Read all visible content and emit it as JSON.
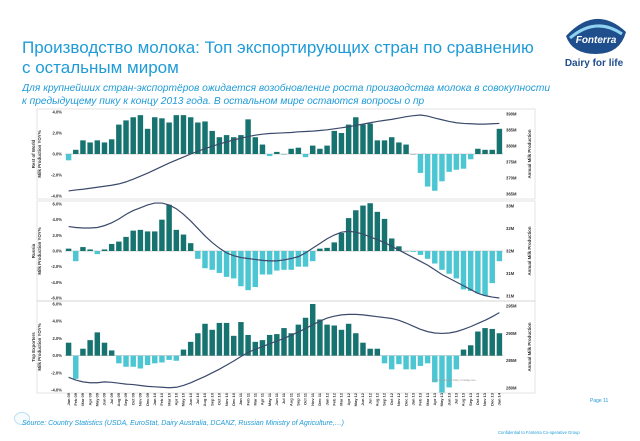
{
  "page": {
    "title": "Производство молока: Топ экспортирующих стран по сравнению с остальным миром",
    "subtitle": "Для крупнейших стран-экспортёров ожидается возобновление роста производства молока в совокупности к предыдущему пику к концу 2013 года. В остальном мире остаются вопросы о пр",
    "logo_text": "Dairy for life",
    "logo_word": "Fonterra",
    "source": "Source: Country Statistics (USDA, EuroStat, Dairy Australia, DCANZ, Russian Ministry of Agriculture,…)",
    "page_number": "Page 11",
    "confidential": "Confidential to Fonterra Co-operative Group",
    "watermark": "Source: Global Dairy Intelligence"
  },
  "colors": {
    "title": "#1f9bd7",
    "positive_bar": "#17736f",
    "negative_bar": "#4cc6d2",
    "line": "#3b4a6b",
    "brand": "#1f4e8c"
  },
  "x_labels": [
    "Jan 09",
    "Feb 09",
    "Mar 09",
    "Apr 09",
    "May 09",
    "Jun 09",
    "Jul 09",
    "Aug 09",
    "Sep 09",
    "Oct 09",
    "Nov 09",
    "Dec 09",
    "Jan 10",
    "Feb 10",
    "Mar 10",
    "Apr 10",
    "May 10",
    "Jun 10",
    "Jul 10",
    "Aug 10",
    "Sep 10",
    "Oct 10",
    "Nov 10",
    "Dec 10",
    "Jan 11",
    "Feb 11",
    "Mar 11",
    "Apr 11",
    "May 11",
    "Jun 11",
    "Jul 11",
    "Aug 11",
    "Sep 11",
    "Oct 11",
    "Nov 11",
    "Dec 11",
    "Jan 12",
    "Feb 12",
    "Mar 12",
    "Apr 12",
    "May 12",
    "Jun 12",
    "Jul 12",
    "Aug 12",
    "Sep 12",
    "Oct 12",
    "Nov 12",
    "Dec 12",
    "Jan 13",
    "Feb 13",
    "Mar 13",
    "Apr 13",
    "May 13",
    "Jun 13",
    "Jul 13",
    "Aug 13",
    "Sep 13",
    "Oct 13",
    "Nov 13",
    "Dec 13",
    "Jan 14"
  ],
  "chart_data": [
    {
      "type": "bar",
      "name": "rest-of-world",
      "ylabel": "Rest of World\nMilk Production YOY%",
      "y2label": "Annual Milk Production",
      "ylim": [
        -4.0,
        4.0
      ],
      "y_ticks": [
        "4.0%",
        "2.0%",
        "0.0%",
        "-2.0%",
        "-4.0%"
      ],
      "y2_ticks": [
        "390M",
        "385M",
        "380M",
        "375M",
        "370M",
        "365M"
      ],
      "y2lim": [
        365,
        390
      ],
      "values": [
        -0.6,
        0.4,
        1.3,
        1.1,
        1.3,
        1.1,
        1.4,
        2.8,
        3.2,
        3.5,
        3.7,
        2.4,
        3.5,
        3.4,
        3.0,
        3.7,
        3.7,
        3.5,
        3.0,
        3.1,
        2.2,
        1.6,
        1.8,
        1.6,
        1.8,
        3.3,
        1.6,
        0.9,
        -0.2,
        0.2,
        0.0,
        0.5,
        0.6,
        -0.3,
        0.8,
        0.5,
        0.8,
        2.2,
        2.0,
        2.8,
        3.5,
        2.8,
        2.9,
        1.3,
        1.3,
        1.6,
        1.1,
        0.9,
        0.0,
        -1.8,
        -3.1,
        -3.5,
        -2.6,
        -1.7,
        -1.5,
        -1.4,
        -0.5,
        0.5,
        0.4,
        0.4,
        2.4
      ],
      "line": [
        366.5,
        366.8,
        367.0,
        367.3,
        367.6,
        367.9,
        368.2,
        368.6,
        369.2,
        370.0,
        370.9,
        371.8,
        372.8,
        373.8,
        374.8,
        375.7,
        376.6,
        377.5,
        378.3,
        379.1,
        379.8,
        380.5,
        381.1,
        381.7,
        382.2,
        382.7,
        383.1,
        383.4,
        383.6,
        383.7,
        383.8,
        383.9,
        384.1,
        384.2,
        384.3,
        384.5,
        384.7,
        385.0,
        385.3,
        385.6,
        386.0,
        386.4,
        386.8,
        387.2,
        387.5,
        387.8,
        388.2,
        388.6,
        388.9,
        389.1,
        388.8,
        388.2,
        387.7,
        387.2,
        386.8,
        386.6,
        386.5,
        386.4,
        386.4,
        386.5,
        386.6
      ]
    },
    {
      "type": "bar",
      "name": "russia",
      "ylabel": "Russia\nMilk Production YOY%",
      "y2label": "Annual Milk Production",
      "ylim": [
        -6.0,
        6.0
      ],
      "y_ticks": [
        "6.0%",
        "4.0%",
        "2.0%",
        "0.0%",
        "-2.0%",
        "-4.0%",
        "-6.0%"
      ],
      "y2_ticks": [
        "33M",
        "32M",
        "32M",
        "31M",
        "31M"
      ],
      "y2lim": [
        31.0,
        33.0
      ],
      "values": [
        0.3,
        -1.3,
        0.5,
        0.2,
        -0.4,
        0.2,
        0.9,
        1.2,
        1.8,
        2.6,
        2.7,
        2.5,
        2.5,
        4.0,
        5.9,
        2.7,
        2.1,
        1.0,
        -1.0,
        -2.2,
        -2.4,
        -2.8,
        -3.3,
        -3.5,
        -4.5,
        -5.0,
        -4.6,
        -3.0,
        -3.0,
        -2.5,
        -2.4,
        -2.4,
        -2.0,
        -2.0,
        -1.3,
        0.3,
        0.4,
        1.1,
        2.3,
        4.2,
        5.2,
        5.8,
        6.1,
        5.0,
        4.1,
        1.6,
        0.6,
        0.0,
        -0.1,
        -0.5,
        -1.0,
        -1.6,
        -2.4,
        -2.9,
        -3.5,
        -4.9,
        -5.1,
        -5.4,
        -5.7,
        -4.1,
        -1.3
      ],
      "line": [
        32.52,
        32.5,
        32.49,
        32.49,
        32.5,
        32.54,
        32.6,
        32.68,
        32.78,
        32.86,
        32.92,
        32.98,
        33.02,
        33.02,
        32.98,
        32.9,
        32.78,
        32.64,
        32.48,
        32.32,
        32.18,
        32.06,
        31.96,
        31.9,
        31.86,
        31.84,
        31.82,
        31.8,
        31.79,
        31.79,
        31.81,
        31.84,
        31.88,
        31.96,
        32.06,
        32.16,
        32.26,
        32.34,
        32.4,
        32.42,
        32.4,
        32.36,
        32.3,
        32.24,
        32.18,
        32.1,
        32.02,
        31.94,
        31.86,
        31.78,
        31.7,
        31.6,
        31.5,
        31.42,
        31.34,
        31.26,
        31.18,
        31.1,
        31.05,
        31.02,
        31.0
      ]
    },
    {
      "type": "bar",
      "name": "top-exporters",
      "ylabel": "Top Exporters\nMilk Production YOY%",
      "y2label": "Annual Milk Production",
      "ylim": [
        -4.0,
        6.0
      ],
      "y_ticks": [
        "6.0%",
        "4.0%",
        "2.0%",
        "0.0%",
        "-2.0%",
        "-4.0%"
      ],
      "y2_ticks": [
        "295M",
        "290M",
        "285M",
        "280M"
      ],
      "y2lim": [
        278,
        297
      ],
      "values": [
        1.5,
        -2.7,
        0.8,
        1.8,
        2.7,
        1.5,
        0.6,
        -0.9,
        -1.3,
        -1.3,
        -1.5,
        -1.1,
        -0.9,
        -0.8,
        -0.5,
        -0.6,
        0.7,
        1.6,
        2.6,
        3.7,
        3.0,
        3.8,
        3.8,
        2.3,
        3.9,
        2.4,
        1.6,
        1.8,
        2.4,
        2.5,
        3.2,
        2.6,
        3.6,
        4.4,
        6.0,
        4.2,
        3.6,
        3.5,
        3.0,
        3.7,
        2.6,
        1.5,
        0.8,
        0.8,
        -0.9,
        -1.6,
        -1.0,
        -1.6,
        -1.6,
        -1.2,
        -0.9,
        -3.1,
        -4.3,
        -3.7,
        -1.6,
        0.7,
        1.2,
        2.8,
        3.2,
        3.1,
        2.6
      ],
      "line": [
        280.8,
        280.2,
        279.8,
        279.6,
        279.6,
        279.8,
        279.7,
        279.5,
        279.3,
        279.2,
        279.0,
        278.8,
        278.7,
        278.6,
        278.5,
        278.6,
        279.0,
        279.6,
        280.3,
        281.0,
        281.8,
        282.6,
        283.5,
        284.4,
        285.4,
        286.3,
        287.0,
        287.6,
        288.2,
        288.8,
        289.4,
        290.1,
        290.8,
        291.6,
        292.4,
        293.2,
        293.9,
        294.3,
        294.6,
        294.7,
        294.7,
        294.6,
        294.4,
        294.2,
        294.0,
        293.8,
        293.4,
        292.8,
        292.1,
        291.4,
        290.9,
        290.6,
        290.5,
        290.6,
        290.9,
        291.4,
        292.0,
        292.7,
        293.4,
        294.2,
        295.1
      ]
    }
  ]
}
